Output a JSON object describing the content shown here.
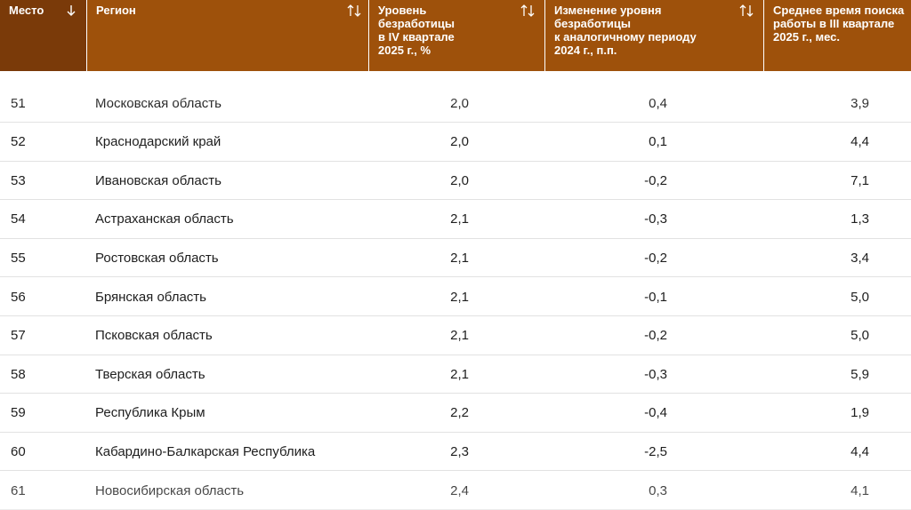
{
  "table": {
    "columns": [
      "Место",
      "Регион",
      "Уровень\nбезработицы\nв IV квартале\n2025 г., %",
      "Изменение уровня\nбезработицы\nк аналогичному периоду\n2024 г., п.п.",
      "Среднее время поиска\nработы в III квартале\n2025 г., мес."
    ],
    "rows": [
      [
        "51",
        "Московская область",
        "2,0",
        "0,4",
        "3,9"
      ],
      [
        "52",
        "Краснодарский край",
        "2,0",
        "0,1",
        "4,4"
      ],
      [
        "53",
        "Ивановская область",
        "2,0",
        "-0,2",
        "7,1"
      ],
      [
        "54",
        "Астраханская область",
        "2,1",
        "-0,3",
        "1,3"
      ],
      [
        "55",
        "Ростовская область",
        "2,1",
        "-0,2",
        "3,4"
      ],
      [
        "56",
        "Брянская область",
        "2,1",
        "-0,1",
        "5,0"
      ],
      [
        "57",
        "Псковская область",
        "2,1",
        "-0,2",
        "5,0"
      ],
      [
        "58",
        "Тверская область",
        "2,1",
        "-0,3",
        "5,9"
      ],
      [
        "59",
        "Республика Крым",
        "2,2",
        "-0,4",
        "1,9"
      ],
      [
        "60",
        "Кабардино-Балкарская Республика",
        "2,3",
        "-2,5",
        "4,4"
      ],
      [
        "61",
        "Новосибирская область",
        "2,4",
        "0,3",
        "4,1"
      ]
    ]
  }
}
